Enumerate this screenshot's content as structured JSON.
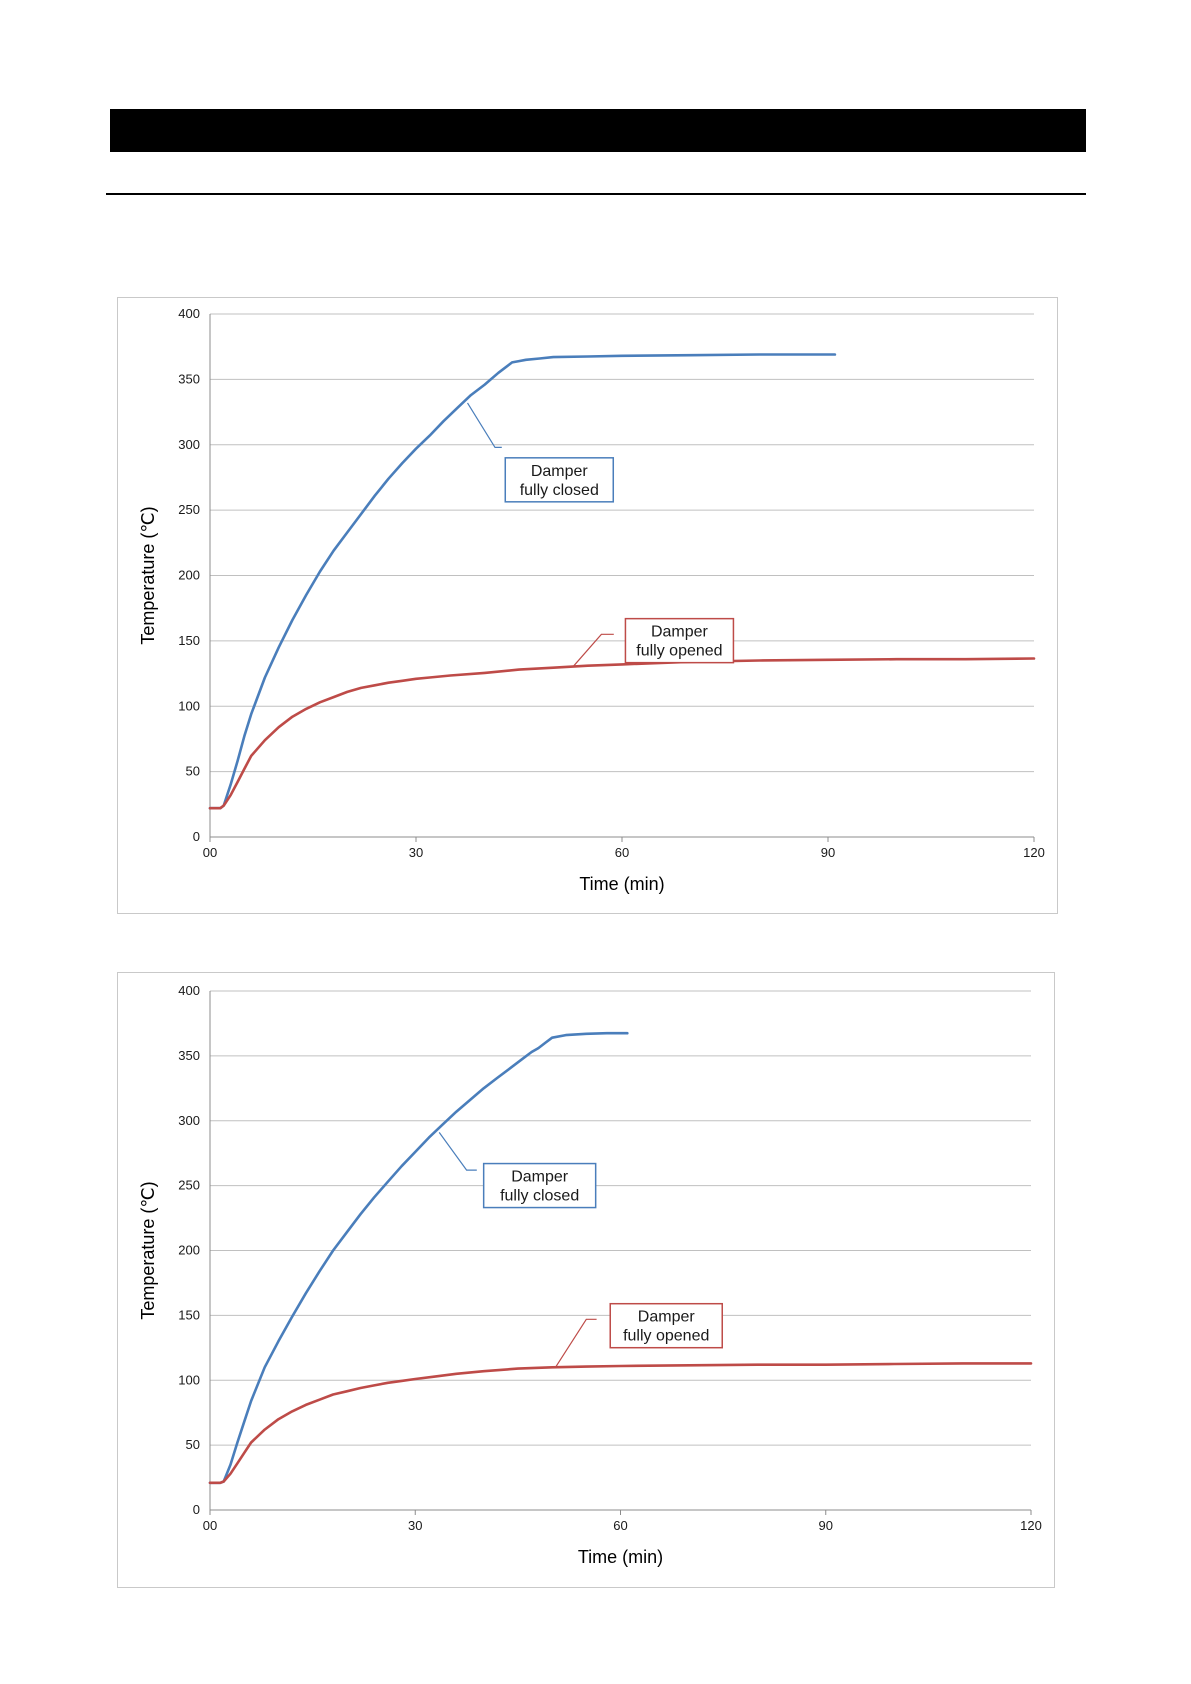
{
  "page": {
    "header_text": ""
  },
  "colors": {
    "closed": "#4a7ebb",
    "opened": "#be4b48",
    "grid": "#c0c0c0",
    "axis": "#8c8c8c"
  },
  "chart_data": [
    {
      "type": "line",
      "xlabel": "Time (min)",
      "ylabel": "Temperature (℃)",
      "xlim": [
        0,
        120
      ],
      "ylim": [
        0,
        400
      ],
      "x_ticks": [
        0,
        30,
        60,
        90,
        120
      ],
      "x_tick_labels": [
        "00",
        "30",
        "60",
        "90",
        "120"
      ],
      "y_ticks": [
        0,
        50,
        100,
        150,
        200,
        250,
        300,
        350,
        400
      ],
      "y_tick_labels": [
        "0",
        "50",
        "100",
        "150",
        "200",
        "250",
        "300",
        "350",
        "400"
      ],
      "grid": true,
      "series": [
        {
          "key": "closed",
          "x": [
            0,
            1.5,
            2,
            3,
            4,
            5,
            6,
            8,
            10,
            12,
            14,
            16,
            18,
            20,
            22,
            24,
            26,
            28,
            30,
            32,
            34,
            36,
            38,
            40,
            42,
            43,
            44,
            45,
            46,
            48,
            50,
            55,
            60,
            70,
            80,
            91
          ],
          "y": [
            22,
            22,
            24,
            40,
            58,
            77,
            94,
            122,
            145,
            166,
            185,
            203,
            219,
            233,
            247,
            261,
            274,
            286,
            297,
            307,
            318,
            328,
            338,
            346,
            355,
            359,
            363,
            364,
            365,
            366,
            367,
            367.5,
            368,
            368.5,
            369,
            369
          ]
        },
        {
          "key": "opened",
          "x": [
            0,
            1.5,
            2,
            3,
            4,
            5,
            6,
            8,
            10,
            12,
            14,
            16,
            18,
            20,
            22,
            24,
            26,
            28,
            30,
            32,
            35,
            40,
            45,
            50,
            55,
            60,
            70,
            80,
            90,
            100,
            110,
            120
          ],
          "y": [
            22,
            22,
            24,
            32,
            42,
            52,
            62,
            74,
            84,
            92,
            98,
            103,
            107,
            111,
            114,
            116,
            118,
            119.5,
            121,
            122,
            123.5,
            125.5,
            128,
            129.5,
            131,
            132,
            134,
            135,
            135.5,
            136,
            136,
            136.5
          ]
        }
      ],
      "annotations": [
        {
          "text_lines": [
            "Damper",
            "fully closed"
          ],
          "series": "closed",
          "box": [
            43,
            290
          ],
          "leader": [
            [
              37.5,
              332
            ],
            [
              41.5,
              298
            ],
            [
              42.5,
              298
            ]
          ]
        },
        {
          "text_lines": [
            "Damper",
            "fully opened"
          ],
          "series": "opened",
          "box": [
            60.5,
            167
          ],
          "leader": [
            [
              53,
              131
            ],
            [
              57,
              155
            ],
            [
              58.8,
              155
            ]
          ]
        }
      ]
    },
    {
      "type": "line",
      "xlabel": "Time (min)",
      "ylabel": "Temperature (℃)",
      "xlim": [
        0,
        120
      ],
      "ylim": [
        0,
        400
      ],
      "x_ticks": [
        0,
        30,
        60,
        90,
        120
      ],
      "x_tick_labels": [
        "00",
        "30",
        "60",
        "90",
        "120"
      ],
      "y_ticks": [
        0,
        50,
        100,
        150,
        200,
        250,
        300,
        350,
        400
      ],
      "y_tick_labels": [
        "0",
        "50",
        "100",
        "150",
        "200",
        "250",
        "300",
        "350",
        "400"
      ],
      "grid": true,
      "series": [
        {
          "key": "closed",
          "x": [
            0,
            1.5,
            2,
            3,
            4,
            5,
            6,
            8,
            10,
            12,
            14,
            16,
            18,
            20,
            22,
            24,
            26,
            28,
            30,
            32,
            34,
            36,
            38,
            40,
            42,
            44,
            46,
            47,
            48,
            49,
            50,
            52,
            55,
            58,
            61
          ],
          "y": [
            21,
            21,
            22,
            35,
            52,
            68,
            84,
            110,
            130,
            149,
            167,
            184,
            200,
            214,
            228,
            241,
            253,
            265,
            276,
            287,
            297,
            307,
            316,
            325,
            333,
            341,
            349,
            353,
            356,
            360,
            364,
            366,
            367,
            367.5,
            367.5
          ]
        },
        {
          "key": "opened",
          "x": [
            0,
            1.5,
            2,
            3,
            4,
            5,
            6,
            8,
            10,
            12,
            14,
            16,
            18,
            20,
            22,
            24,
            26,
            28,
            30,
            33,
            36,
            40,
            45,
            50,
            55,
            60,
            70,
            80,
            90,
            100,
            110,
            120
          ],
          "y": [
            21,
            21,
            22,
            28,
            36,
            44,
            52,
            62,
            70,
            76,
            81,
            85,
            89,
            91.5,
            94,
            96,
            98,
            99.5,
            101,
            103,
            105,
            107,
            109,
            110,
            110.5,
            111,
            111.5,
            112,
            112,
            112.5,
            113,
            113
          ]
        }
      ],
      "annotations": [
        {
          "text_lines": [
            "Damper",
            "fully closed"
          ],
          "series": "closed",
          "box": [
            40,
            267
          ],
          "leader": [
            [
              33.5,
              291
            ],
            [
              37.5,
              262
            ],
            [
              39,
              262
            ]
          ]
        },
        {
          "text_lines": [
            "Damper",
            "fully opened"
          ],
          "series": "opened",
          "box": [
            58.5,
            159
          ],
          "leader": [
            [
              50.5,
              110
            ],
            [
              55,
              147
            ],
            [
              56.5,
              147
            ]
          ]
        }
      ]
    }
  ]
}
